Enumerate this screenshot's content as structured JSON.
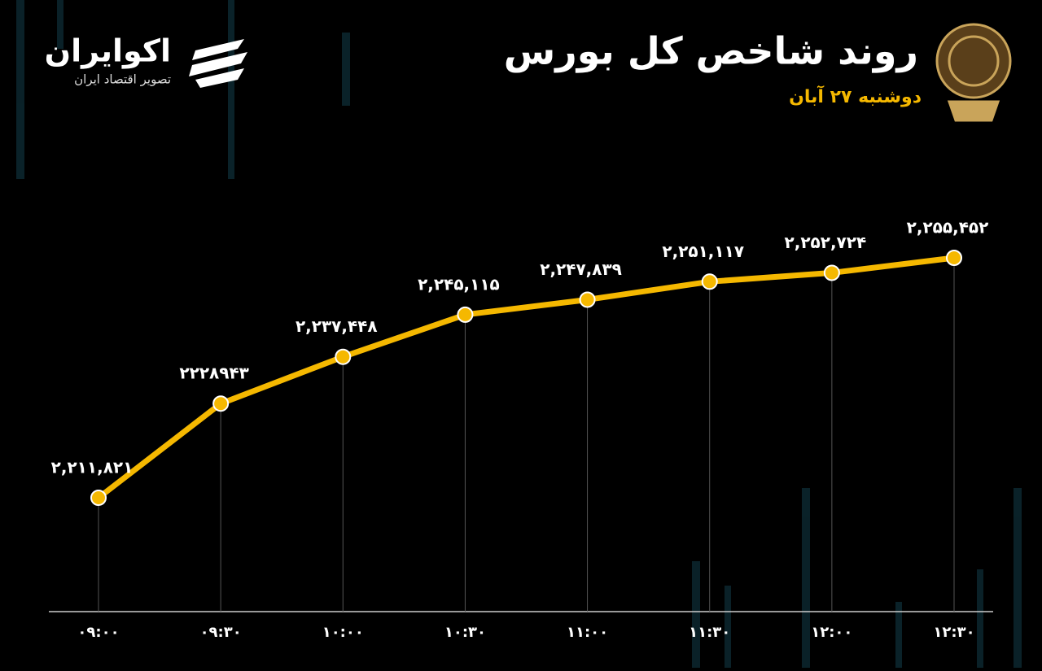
{
  "brand": {
    "name": "اکوایران",
    "tagline": "تصویر اقتصاد ایران"
  },
  "chart_data": {
    "type": "line",
    "title": "روند شاخص کل بورس",
    "subtitle": "دوشنبه ۲۷ آبان",
    "categories": [
      "۰۹:۰۰",
      "۰۹:۳۰",
      "۱۰:۰۰",
      "۱۰:۳۰",
      "۱۱:۰۰",
      "۱۱:۳۰",
      "۱۲:۰۰",
      "۱۲:۳۰"
    ],
    "values": [
      2211821,
      2228943,
      2237448,
      2245115,
      2247839,
      2251117,
      2252724,
      2255452
    ],
    "value_labels": [
      "۲,۲۱۱,۸۲۱",
      "۲۲۲۸۹۴۳",
      "۲,۲۳۷,۴۴۸",
      "۲,۲۴۵,۱۱۵",
      "۲,۲۴۷,۸۳۹",
      "۲,۲۵۱,۱۱۷",
      "۲,۲۵۲,۷۲۴",
      "۲,۲۵۵,۴۵۲"
    ],
    "color": "#f5b800"
  }
}
